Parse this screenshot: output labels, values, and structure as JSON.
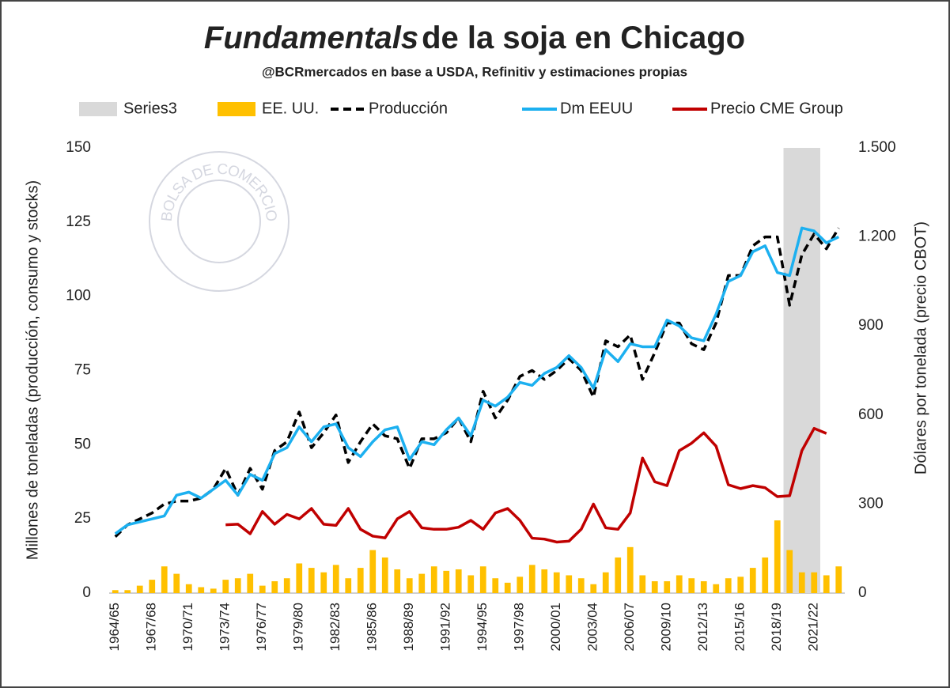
{
  "chart_data": {
    "type": "combo",
    "title": [
      "Fundamentals",
      "de la soja en Chicago"
    ],
    "subtitle": "@BCRmercados en base a USDA, Refinitiv y estimaciones propias",
    "watermark": "BOLSA DE COMERCIO DE ROSARIO",
    "y_label": "Millones de toneladas (producción, consumo y stocks)",
    "y2_label": "Dólares por tonelada (precio CBOT)",
    "categories": [
      "1964/65",
      null,
      null,
      "1967/68",
      null,
      null,
      "1970/71",
      null,
      null,
      "1973/74",
      null,
      null,
      "1976/77",
      null,
      null,
      "1979/80",
      null,
      null,
      "1982/83",
      null,
      null,
      "1985/86",
      null,
      null,
      "1988/89",
      null,
      null,
      "1991/92",
      null,
      null,
      "1994/95",
      null,
      null,
      "1997/98",
      null,
      null,
      "2000/01",
      null,
      null,
      "2003/04",
      null,
      null,
      "2006/07",
      null,
      null,
      "2009/10",
      null,
      null,
      "2012/13",
      null,
      null,
      "2015/16",
      null,
      null,
      "2018/19",
      null,
      null,
      "2021/22",
      null,
      null
    ],
    "ylim": [
      0,
      150
    ],
    "yticks": [
      0,
      25,
      50,
      75,
      100,
      125,
      150
    ],
    "y2lim": [
      0,
      1500
    ],
    "y2ticks": [
      0,
      300,
      600,
      900,
      {
        "value": 1200,
        "label": "1.200"
      },
      {
        "value": 1500,
        "label": "1.500"
      }
    ],
    "grid": false,
    "legend": "top",
    "series": [
      {
        "name": "Series3",
        "type": "bar",
        "color": "#d9d9d9",
        "full_width": true,
        "values": [
          null,
          null,
          null,
          null,
          null,
          null,
          null,
          null,
          null,
          null,
          null,
          null,
          null,
          null,
          null,
          null,
          null,
          null,
          null,
          null,
          null,
          null,
          null,
          null,
          null,
          null,
          null,
          null,
          null,
          null,
          null,
          null,
          null,
          null,
          null,
          null,
          null,
          null,
          null,
          null,
          null,
          null,
          null,
          null,
          null,
          null,
          null,
          null,
          null,
          null,
          null,
          null,
          null,
          null,
          null,
          150,
          150,
          150,
          null,
          null
        ]
      },
      {
        "name": "EE. UU.",
        "type": "bar",
        "color": "#ffc000",
        "values": [
          1,
          1,
          2.5,
          4.5,
          9,
          6.5,
          3,
          2,
          1.5,
          4.5,
          5,
          6.5,
          2.5,
          4,
          5,
          10,
          8.5,
          7,
          9.5,
          5,
          8.5,
          14.5,
          12,
          8,
          5,
          6.5,
          9,
          7.5,
          8,
          6,
          9,
          5,
          3.5,
          5.5,
          9.5,
          8,
          7,
          6,
          5,
          3,
          7,
          12,
          15.5,
          6,
          4,
          4,
          6,
          5,
          4,
          3,
          5,
          5.5,
          8.5,
          12,
          24.5,
          14.5,
          7,
          7,
          6,
          9
        ]
      },
      {
        "name": "Producción",
        "type": "line",
        "color": "#000000",
        "dashed": true,
        "values": [
          19,
          23,
          25,
          27,
          30,
          31,
          31,
          32,
          35,
          42,
          33,
          42,
          35,
          48,
          51,
          61,
          49,
          54,
          60,
          44,
          51,
          57,
          53,
          52,
          42,
          52,
          52,
          54,
          59,
          51,
          68,
          59,
          65,
          73,
          75,
          72,
          75,
          79,
          75,
          66,
          85,
          83,
          87,
          72,
          81,
          91,
          91,
          84,
          82,
          91,
          107,
          107,
          117,
          120,
          120,
          97,
          114,
          121,
          116,
          123
        ]
      },
      {
        "name": "Dm EEUU",
        "type": "line",
        "color": "#1cb0f0",
        "values": [
          20,
          23,
          24,
          25,
          26,
          33,
          34,
          32,
          35,
          38,
          33,
          40,
          38,
          47,
          49,
          56,
          51,
          56,
          57,
          49,
          46,
          51,
          55,
          56,
          45,
          51,
          50,
          55,
          59,
          53,
          65,
          63,
          66,
          71,
          70,
          74,
          76,
          80,
          76,
          69,
          82,
          78,
          84,
          83,
          83,
          92,
          90,
          86,
          85,
          94,
          105,
          107,
          115,
          117,
          108,
          107,
          123,
          122,
          118,
          120
        ]
      },
      {
        "name": "Precio CME Group",
        "type": "line",
        "color": "#c00000",
        "axis": "y2",
        "values": [
          null,
          null,
          null,
          null,
          null,
          null,
          null,
          null,
          null,
          230,
          232,
          200,
          275,
          232,
          265,
          250,
          285,
          232,
          228,
          285,
          215,
          192,
          186,
          250,
          275,
          220,
          215,
          215,
          222,
          245,
          215,
          270,
          285,
          245,
          185,
          182,
          172,
          175,
          215,
          300,
          220,
          215,
          270,
          455,
          375,
          362,
          480,
          505,
          540,
          495,
          365,
          352,
          362,
          355,
          325,
          328,
          480,
          555,
          538,
          null
        ]
      }
    ]
  }
}
